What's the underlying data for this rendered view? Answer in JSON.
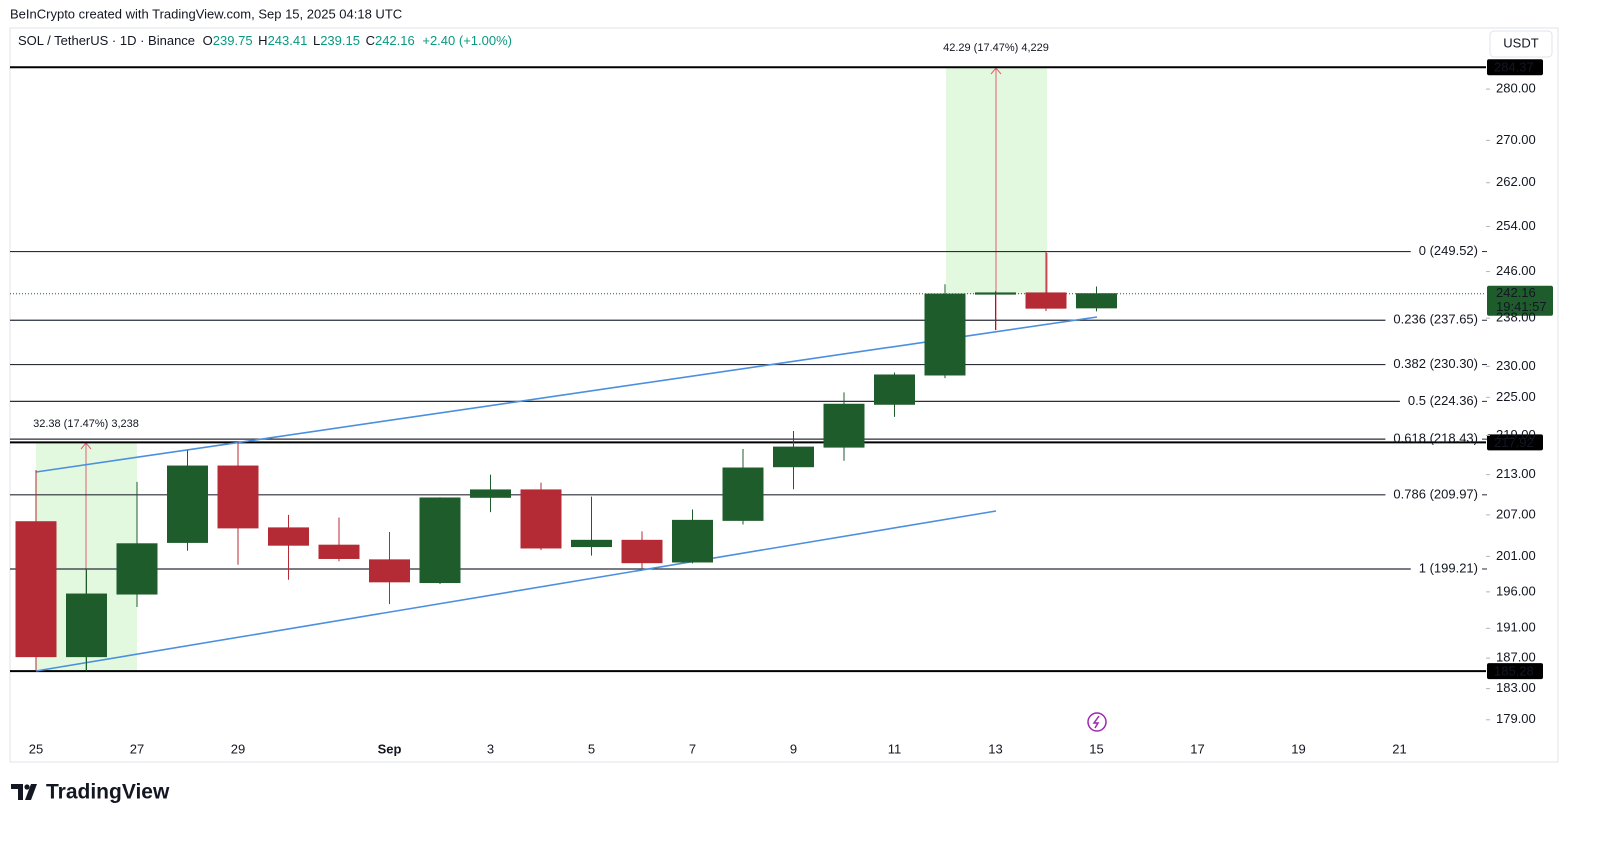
{
  "header": {
    "attribution": "BeInCrypto created with TradingView.com, Sep 15, 2025 04:18 UTC"
  },
  "chart_data": {
    "type": "candlestick",
    "symbol": "SOL / TetherUS · 1D · Binance",
    "legend_labels": [
      "O",
      "H",
      "L",
      "C"
    ],
    "change": "+2.40 (+1.00%)",
    "currency": "USDT",
    "categories": [
      "25",
      null,
      "27",
      null,
      "29",
      null,
      null,
      "Sep",
      null,
      "3",
      null,
      "5",
      null,
      "7",
      null,
      "9",
      null,
      "11",
      null,
      "13",
      null,
      "15",
      null,
      "17",
      null,
      "19",
      null,
      "21"
    ],
    "open": [
      206.0,
      187.2,
      195.7,
      203.0,
      214.3,
      205.1,
      202.6,
      200.5,
      197.3,
      209.6,
      210.7,
      202.4,
      203.3,
      200.2,
      206.2,
      214.2,
      217.2,
      223.9,
      228.6,
      242.1,
      242.3,
      239.75,
      null,
      null,
      null,
      null,
      null,
      null
    ],
    "high": [
      213.7,
      199.1,
      211.9,
      216.7,
      218.0,
      207.0,
      206.6,
      204.5,
      209.6,
      213.0,
      211.8,
      209.7,
      204.6,
      207.8,
      216.9,
      219.7,
      225.8,
      229.0,
      243.8,
      242.6,
      249.5,
      243.41,
      null,
      null,
      null,
      null,
      null,
      null
    ],
    "low": [
      185.3,
      185.3,
      193.9,
      201.8,
      199.8,
      197.7,
      200.3,
      194.3,
      197.1,
      207.4,
      201.9,
      201.1,
      199.3,
      200.0,
      205.6,
      210.8,
      215.1,
      221.9,
      228.1,
      236.0,
      239.2,
      239.15,
      null,
      null,
      null,
      null,
      null,
      null
    ],
    "close": [
      187.2,
      195.7,
      202.8,
      214.3,
      205.1,
      202.6,
      200.7,
      197.4,
      209.5,
      210.7,
      202.2,
      203.3,
      200.1,
      206.2,
      214.0,
      217.2,
      223.9,
      228.6,
      242.1,
      242.3,
      239.7,
      242.16,
      null,
      null,
      null,
      null,
      null,
      null
    ],
    "up_color": "#1e5c2c",
    "down_color": "#b42a35",
    "log_scale": true,
    "ylim": [
      176.7,
      292.4
    ],
    "yticks": [
      {
        "value": 280,
        "label": "280.00"
      },
      {
        "value": 270,
        "label": "270.00"
      },
      {
        "value": 262,
        "label": "262.00"
      },
      {
        "value": 254,
        "label": "254.00"
      },
      {
        "value": 246,
        "label": "246.00"
      },
      {
        "value": 238,
        "label": "238.00"
      },
      {
        "value": 230,
        "label": "230.00"
      },
      {
        "value": 225,
        "label": "225.00"
      },
      {
        "value": 219,
        "label": "219.00"
      },
      {
        "value": 213,
        "label": "213.00"
      },
      {
        "value": 207,
        "label": "207.00"
      },
      {
        "value": 201,
        "label": "201.00"
      },
      {
        "value": 196,
        "label": "196.00"
      },
      {
        "value": 191,
        "label": "191.00"
      },
      {
        "value": 187,
        "label": "187.00"
      },
      {
        "value": 183,
        "label": "183.00"
      },
      {
        "value": 179,
        "label": "179.00"
      }
    ],
    "fib_levels": [
      {
        "value": 249.52,
        "label": "0 (249.52)"
      },
      {
        "value": 237.65,
        "label": "0.236 (237.65)"
      },
      {
        "value": 230.3,
        "label": "0.382 (230.30)"
      },
      {
        "value": 224.36,
        "label": "0.5 (224.36)"
      },
      {
        "value": 218.43,
        "label": "0.618 (218.43)"
      },
      {
        "value": 209.97,
        "label": "0.786 (209.97)"
      },
      {
        "value": 199.21,
        "label": "1 (199.21)"
      }
    ],
    "price_lines": [
      284.37,
      217.92,
      185.28
    ],
    "last_price": 242.16,
    "countdown": "19:41:57",
    "measurements": [
      "32.38 (17.47%) 3,238",
      "42.29 (17.47%) 4,229"
    ]
  },
  "footer": {
    "logo": "TradingView"
  }
}
